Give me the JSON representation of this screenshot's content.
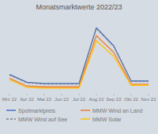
{
  "chart_data": {
    "type": "line",
    "title": "Monatsmarktwerte 2022/23",
    "categories": [
      "Mrz 22",
      "Apr 22",
      "Mai 22",
      "Jun 22",
      "Jul 22",
      "Aug 22",
      "Sep 22",
      "Okt 22",
      "Nov 22"
    ],
    "series": [
      {
        "name": "Spotmarktpreis",
        "color": "#4472c4",
        "line_style": "solid",
        "values": [
          130,
          100,
          95,
          95,
          95,
          310,
          240,
          105,
          105
        ]
      },
      {
        "name": "MMW Wind an Land",
        "color": "#ed7d31",
        "line_style": "solid",
        "values": [
          115,
          85,
          82,
          82,
          82,
          280,
          215,
          92,
          92
        ]
      },
      {
        "name": "MMW Wind auf See",
        "color": "#808080",
        "line_style": "dashed",
        "values": [
          128,
          98,
          93,
          93,
          93,
          308,
          238,
          103,
          103
        ]
      },
      {
        "name": "MMW Solar",
        "color": "#ffc000",
        "line_style": "solid",
        "values": [
          110,
          80,
          77,
          77,
          77,
          260,
          200,
          88,
          88
        ]
      }
    ],
    "ylim": [
      58.36,
      356.6
    ],
    "grid": false,
    "legend": "bottom",
    "tick_labels": "x"
  }
}
